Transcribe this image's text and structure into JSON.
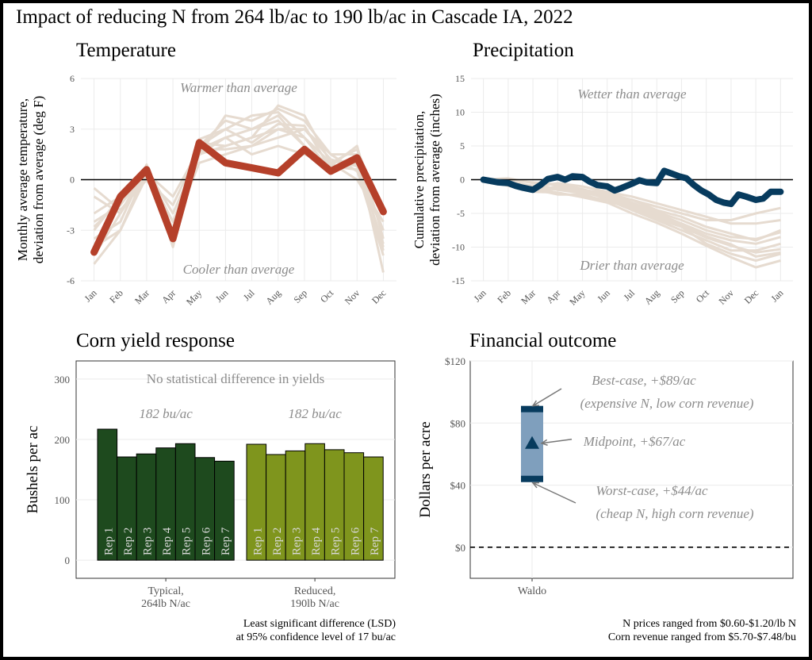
{
  "page_title": "Impact of reducing N from 264 lb/ac to 190 lb/ac in Cascade IA, 2022",
  "colors": {
    "background_line": "#e6dbd0",
    "temperature_highlight": "#b5402a",
    "precip_highlight": "#073b5e",
    "typical_bar": "#1e4a1e",
    "reduced_bar": "#7f951d",
    "financial_box": "#7f9fbd",
    "financial_cap": "#073b5e",
    "annotation_text": "#8c8c8c"
  },
  "chart_data": [
    {
      "id": "temperature",
      "type": "line",
      "title": "Temperature",
      "ylabel_lines": [
        "Monthly average temperature,",
        "deviation from average (deg F)"
      ],
      "categories": [
        "Jan",
        "Feb",
        "Mar",
        "Apr",
        "May",
        "Jun",
        "Jul",
        "Aug",
        "Sep",
        "Oct",
        "Nov",
        "Dec"
      ],
      "ylim": [
        -6,
        6
      ],
      "yticks": [
        -6,
        -3,
        0,
        3,
        6
      ],
      "ytick_labels": [
        "-6",
        "-3",
        "0",
        "3",
        "6"
      ],
      "grid": true,
      "annotations": {
        "top": "Warmer than average",
        "bottom": "Cooler than average"
      },
      "highlight": {
        "values": [
          -4.3,
          -1.0,
          0.6,
          -3.5,
          2.2,
          1.0,
          0.7,
          0.4,
          1.8,
          0.5,
          1.3,
          -1.9
        ]
      },
      "background_series": [
        [
          -2.5,
          -1.5,
          0.5,
          -2.5,
          1.5,
          3.8,
          3.5,
          4.2,
          3.5,
          1.5,
          0.5,
          -3.0
        ],
        [
          -5.0,
          -3.0,
          0.2,
          -3.0,
          2.0,
          3.0,
          3.8,
          4.0,
          2.5,
          1.0,
          1.2,
          -4.0
        ],
        [
          -3.0,
          -1.0,
          0.0,
          -1.5,
          1.8,
          2.5,
          3.0,
          3.5,
          2.0,
          0.8,
          2.0,
          -3.5
        ],
        [
          -1.0,
          -2.0,
          0.8,
          -4.0,
          2.2,
          2.0,
          2.5,
          3.0,
          3.0,
          1.5,
          1.5,
          -5.5
        ],
        [
          -4.0,
          -3.0,
          0.6,
          -2.0,
          1.5,
          2.0,
          2.5,
          4.4,
          3.8,
          1.0,
          0.0,
          -2.5
        ],
        [
          -2.0,
          -1.0,
          0.3,
          -3.0,
          1.0,
          1.5,
          2.0,
          3.0,
          2.5,
          0.5,
          1.0,
          -3.0
        ],
        [
          -3.5,
          -2.5,
          0.9,
          -3.8,
          2.0,
          3.5,
          3.0,
          3.8,
          2.0,
          0.8,
          0.6,
          -4.5
        ],
        [
          -0.5,
          -1.8,
          0.0,
          -2.5,
          1.5,
          2.5,
          1.5,
          2.0,
          1.5,
          1.0,
          1.8,
          -2.0
        ],
        [
          -4.5,
          -2.0,
          0.4,
          -1.0,
          1.8,
          1.8,
          2.0,
          2.5,
          3.0,
          1.2,
          0.8,
          -3.8
        ],
        [
          -2.8,
          -1.3,
          0.7,
          -3.2,
          2.4,
          3.0,
          2.2,
          3.3,
          3.2,
          0.6,
          1.4,
          -4.2
        ]
      ]
    },
    {
      "id": "precipitation",
      "type": "line",
      "title": "Precipitation",
      "ylabel_lines": [
        "Cumulative precipitation,",
        "deviation from average (inches)"
      ],
      "xticks": [
        "Jan",
        "Feb",
        "Mar",
        "Apr",
        "May",
        "Jun",
        "Jul",
        "Aug",
        "Sep",
        "Oct",
        "Nov",
        "Dec",
        "Jan"
      ],
      "ylim": [
        -15,
        15
      ],
      "yticks": [
        -15,
        -10,
        -5,
        0,
        5,
        10,
        15
      ],
      "ytick_labels": [
        "-15",
        "-10",
        "-5",
        "0",
        "5",
        "10",
        "15"
      ],
      "grid": true,
      "annotations": {
        "top": "Wetter than average",
        "bottom": "Drier than average"
      },
      "highlight": {
        "x": [
          0,
          0.3,
          0.6,
          1.0,
          1.3,
          1.6,
          2.0,
          2.3,
          2.6,
          3.0,
          3.3,
          3.6,
          4.0,
          4.3,
          4.6,
          5.0,
          5.3,
          5.6,
          6.0,
          6.3,
          6.6,
          7.0,
          7.3,
          7.6,
          7.9,
          8.2,
          8.5,
          8.8,
          9.1,
          9.4,
          9.7,
          10.0,
          10.3,
          10.6,
          11.0,
          11.3,
          11.6,
          12.0
        ],
        "y": [
          0,
          -0.2,
          -0.4,
          -0.5,
          -0.9,
          -1.2,
          -1.5,
          -0.8,
          0.1,
          0.4,
          0.0,
          0.5,
          0.4,
          -0.3,
          -0.8,
          -1.0,
          -1.6,
          -1.2,
          -0.6,
          -0.1,
          -0.4,
          -0.5,
          1.3,
          0.9,
          0.5,
          0.2,
          -0.8,
          -1.6,
          -2.2,
          -3.0,
          -3.4,
          -3.6,
          -2.2,
          -2.5,
          -3.0,
          -2.8,
          -1.8,
          -1.8
        ]
      },
      "background_series": [
        {
          "x": [
            0,
            1,
            2,
            3,
            4,
            5,
            6,
            7,
            8,
            9,
            10,
            11,
            12
          ],
          "y": [
            0,
            -0.3,
            -1.0,
            -1.5,
            -1.8,
            -2.8,
            -4.0,
            -5.5,
            -7.0,
            -9.5,
            -11.0,
            -12.0,
            -11.0
          ]
        },
        {
          "x": [
            0,
            1,
            2,
            3,
            4,
            5,
            6,
            7,
            8,
            9,
            10,
            11,
            12
          ],
          "y": [
            0,
            -0.6,
            -1.0,
            -2.0,
            -2.5,
            -3.0,
            -4.5,
            -6.0,
            -7.5,
            -9.0,
            -10.5,
            -10.5,
            -9.5
          ]
        },
        {
          "x": [
            0,
            1,
            2,
            3,
            4,
            5,
            6,
            7,
            8,
            9,
            10,
            11,
            12
          ],
          "y": [
            0,
            -0.8,
            -1.6,
            -1.0,
            -1.4,
            -2.4,
            -3.5,
            -5.0,
            -6.5,
            -8.0,
            -9.0,
            -9.5,
            -8.5
          ]
        },
        {
          "x": [
            0,
            1,
            2,
            3,
            4,
            5,
            6,
            7,
            8,
            9,
            10,
            11,
            12
          ],
          "y": [
            0,
            0.2,
            -0.5,
            -0.8,
            -1.5,
            -2.0,
            -3.0,
            -4.5,
            -5.5,
            -7.0,
            -8.0,
            -9.0,
            -7.5
          ]
        },
        {
          "x": [
            0,
            1,
            2,
            3,
            4,
            5,
            6,
            7,
            8,
            9,
            10,
            11,
            12
          ],
          "y": [
            0,
            -0.4,
            -1.2,
            -0.5,
            -1.0,
            -1.8,
            -2.5,
            -3.5,
            -4.5,
            -5.5,
            -6.5,
            -6.5,
            -6.0
          ]
        },
        {
          "x": [
            0,
            1,
            2,
            3,
            4,
            5,
            6,
            7,
            8,
            9,
            10,
            11,
            12
          ],
          "y": [
            0,
            -0.5,
            -1.0,
            -1.5,
            -2.0,
            -2.5,
            -3.0,
            -4.0,
            -5.0,
            -6.0,
            -6.0,
            -5.0,
            -4.2
          ]
        },
        {
          "x": [
            0,
            1,
            2,
            3,
            4,
            5,
            6,
            7,
            8,
            9,
            10,
            11,
            12
          ],
          "y": [
            0,
            -0.7,
            -1.4,
            -2.2,
            -2.2,
            -3.2,
            -4.2,
            -5.8,
            -7.0,
            -8.6,
            -9.8,
            -10.8,
            -10.3
          ]
        },
        {
          "x": [
            0,
            1,
            2,
            3,
            4,
            5,
            6,
            7,
            8,
            9,
            10,
            11,
            12
          ],
          "y": [
            0,
            -0.1,
            -0.4,
            -0.7,
            -1.4,
            -2.5,
            -3.8,
            -5.2,
            -6.8,
            -8.4,
            -9.6,
            -11.4,
            -10.8
          ]
        },
        {
          "x": [
            0,
            1,
            2,
            3,
            4,
            5,
            6,
            7,
            8,
            9,
            10,
            11,
            12
          ],
          "y": [
            0,
            -0.9,
            -1.8,
            -1.9,
            -2.6,
            -3.4,
            -5.0,
            -6.4,
            -8.0,
            -9.8,
            -11.5,
            -13.0,
            -12.0
          ]
        },
        {
          "x": [
            0,
            1,
            2,
            3,
            4,
            5,
            6,
            7,
            8,
            9,
            10,
            11,
            12
          ],
          "y": [
            0,
            -0.3,
            -0.9,
            -1.3,
            -1.7,
            -2.2,
            -3.4,
            -4.8,
            -6.0,
            -7.5,
            -8.5,
            -8.8,
            -7.8
          ]
        }
      ]
    },
    {
      "id": "corn-yield",
      "type": "bar",
      "title": "Corn yield response",
      "ylabel": "Bushels per ac",
      "ylim": [
        -30,
        330
      ],
      "yticks": [
        0,
        100,
        200,
        300
      ],
      "ytick_labels": [
        "0",
        "100",
        "200",
        "300"
      ],
      "grid": true,
      "annotation_top": "No statistical difference in yields",
      "groups": [
        {
          "label_lines": [
            "Typical,",
            "264lb N/ac"
          ],
          "mean_label": "182 bu/ac",
          "color_key": "typical_bar",
          "reps": [
            "Rep 1",
            "Rep 2",
            "Rep 3",
            "Rep 4",
            "Rep 5",
            "Rep 6",
            "Rep 7"
          ],
          "values": [
            217,
            171,
            176,
            186,
            193,
            170,
            164
          ]
        },
        {
          "label_lines": [
            "Reduced,",
            "190lb N/ac"
          ],
          "mean_label": "182 bu/ac",
          "color_key": "reduced_bar",
          "reps": [
            "Rep 1",
            "Rep 2",
            "Rep 3",
            "Rep 4",
            "Rep 5",
            "Rep 6",
            "Rep 7"
          ],
          "values": [
            192,
            175,
            181,
            193,
            183,
            178,
            171
          ]
        }
      ],
      "footnote_lines": [
        "Least significant difference (LSD)",
        "at 95% confidence level of 17 bu/ac"
      ]
    },
    {
      "id": "financial",
      "type": "range",
      "title": "Financial outcome",
      "ylabel": "Dollars per acre",
      "ylim": [
        -20,
        120
      ],
      "yticks": [
        0,
        40,
        80,
        120
      ],
      "ytick_labels": [
        "$0",
        "$40",
        "$80",
        "$120"
      ],
      "grid": true,
      "category": "Waldo",
      "best_case": 89,
      "midpoint": 67,
      "worst_case": 44,
      "reference_line": 0,
      "annotations": {
        "best": [
          "Best-case, +$89/ac",
          "(expensive N, low corn revenue)"
        ],
        "mid": "Midpoint, +$67/ac",
        "worst": [
          "Worst-case, +$44/ac",
          "(cheap N,  high corn revenue)"
        ]
      },
      "footnote_lines": [
        "N prices ranged from $0.60-$1.20/lb N",
        "Corn revenue ranged from $5.70-$7.48/bu"
      ]
    }
  ]
}
